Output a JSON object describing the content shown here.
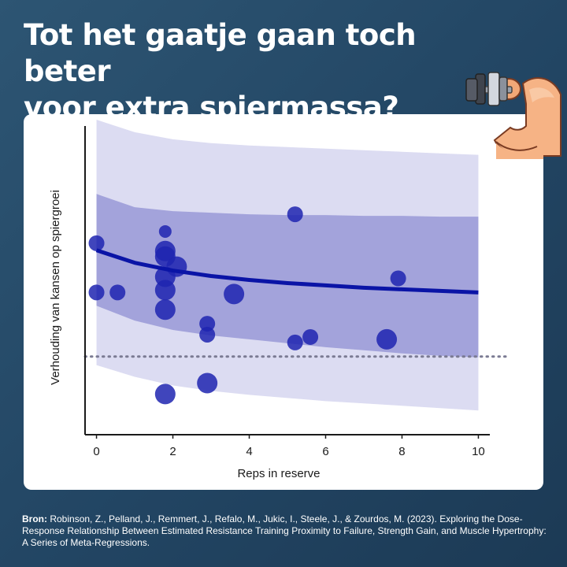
{
  "header": {
    "title_line1": "Tot het gaatje gaan toch beter",
    "title_line2": "voor extra spiermassa?"
  },
  "source": {
    "label": "Bron:",
    "text": "Robinson, Z., Pelland, J., Remmert, J., Refalo, M., Jukic, I., Steele, J., & Zourdos, M. (2023). Exploring the Dose-Response Relationship Between Estimated Resistance Training Proximity to Failure, Strength Gain, and Muscle Hypertrophy: A Series of Meta-Regressions."
  },
  "icons": {
    "mascot": "flexed-arm-dumbbell-icon"
  },
  "colors": {
    "background": "#244766",
    "outer_band": "#dcdcf2",
    "inner_band": "#a3a3db",
    "fit_line": "#0a14a6",
    "points": "#1f24b0",
    "reference_line": "#7b7b93"
  },
  "chart_data": {
    "type": "scatter",
    "title": "",
    "xlabel": "Reps in reserve",
    "ylabel": "Verhouding van kansen op spiergroei",
    "xlim": [
      -0.3,
      10.3
    ],
    "ylim": [
      0.0,
      4.0
    ],
    "xticks": [
      0,
      2,
      4,
      6,
      8,
      10
    ],
    "y_tick_labels_shown": false,
    "grid": false,
    "reference_line": {
      "y": 1.0,
      "style": "dotted"
    },
    "fit": {
      "x": [
        0,
        1,
        2,
        3,
        4,
        5,
        6,
        7,
        8,
        9,
        10
      ],
      "y": [
        2.36,
        2.2,
        2.1,
        2.03,
        1.98,
        1.94,
        1.91,
        1.88,
        1.86,
        1.84,
        1.82
      ]
    },
    "prediction_interval": {
      "x": [
        0,
        1,
        2,
        3,
        4,
        5,
        6,
        7,
        8,
        9,
        10
      ],
      "lower": [
        0.89,
        0.74,
        0.63,
        0.56,
        0.51,
        0.47,
        0.43,
        0.4,
        0.37,
        0.34,
        0.31
      ],
      "upper": [
        4.03,
        3.87,
        3.78,
        3.73,
        3.7,
        3.68,
        3.66,
        3.64,
        3.62,
        3.6,
        3.58
      ]
    },
    "confidence_interval": {
      "x": [
        0,
        1,
        2,
        3,
        4,
        5,
        6,
        7,
        8,
        9,
        10
      ],
      "lower": [
        1.65,
        1.46,
        1.34,
        1.27,
        1.22,
        1.17,
        1.12,
        1.08,
        1.04,
        1.01,
        0.99
      ],
      "upper": [
        3.08,
        2.91,
        2.86,
        2.84,
        2.82,
        2.81,
        2.81,
        2.8,
        2.8,
        2.79,
        2.79
      ]
    },
    "points": [
      {
        "x": 0.0,
        "y": 2.45,
        "size": "medium"
      },
      {
        "x": 0.0,
        "y": 1.82,
        "size": "medium"
      },
      {
        "x": 0.55,
        "y": 1.82,
        "size": "medium"
      },
      {
        "x": 1.8,
        "y": 2.6,
        "size": "small"
      },
      {
        "x": 1.8,
        "y": 2.35,
        "size": "large"
      },
      {
        "x": 1.8,
        "y": 2.28,
        "size": "large"
      },
      {
        "x": 2.1,
        "y": 2.15,
        "size": "large"
      },
      {
        "x": 1.8,
        "y": 2.02,
        "size": "large"
      },
      {
        "x": 1.8,
        "y": 1.85,
        "size": "large"
      },
      {
        "x": 1.8,
        "y": 1.6,
        "size": "large"
      },
      {
        "x": 1.8,
        "y": 0.52,
        "size": "large"
      },
      {
        "x": 2.9,
        "y": 1.42,
        "size": "medium"
      },
      {
        "x": 2.9,
        "y": 1.28,
        "size": "medium"
      },
      {
        "x": 2.9,
        "y": 0.66,
        "size": "large"
      },
      {
        "x": 3.6,
        "y": 1.8,
        "size": "large"
      },
      {
        "x": 5.2,
        "y": 2.82,
        "size": "medium"
      },
      {
        "x": 5.2,
        "y": 1.18,
        "size": "medium"
      },
      {
        "x": 5.6,
        "y": 1.25,
        "size": "medium"
      },
      {
        "x": 7.6,
        "y": 1.22,
        "size": "large"
      },
      {
        "x": 7.9,
        "y": 2.0,
        "size": "medium"
      }
    ]
  }
}
